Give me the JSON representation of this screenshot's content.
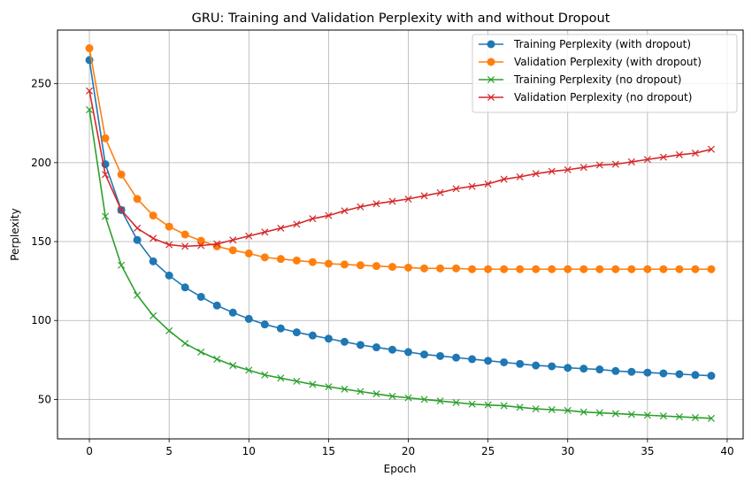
{
  "chart_data": {
    "type": "line",
    "title": "GRU: Training and Validation Perplexity with and without Dropout",
    "xlabel": "Epoch",
    "ylabel": "Perplexity",
    "xlim": [
      -2,
      41
    ],
    "ylim": [
      25,
      284
    ],
    "xticks": [
      0,
      5,
      10,
      15,
      20,
      25,
      30,
      35,
      40
    ],
    "yticks": [
      50,
      100,
      150,
      200,
      250
    ],
    "grid": true,
    "legend_position": "top-right",
    "x": [
      0,
      1,
      2,
      3,
      4,
      5,
      6,
      7,
      8,
      9,
      10,
      11,
      12,
      13,
      14,
      15,
      16,
      17,
      18,
      19,
      20,
      21,
      22,
      23,
      24,
      25,
      26,
      27,
      28,
      29,
      30,
      31,
      32,
      33,
      34,
      35,
      36,
      37,
      38,
      39
    ],
    "series": [
      {
        "name": "Training Perplexity (with dropout)",
        "color": "#1f77b4",
        "marker": "circle",
        "values": [
          265,
          199,
          170,
          151,
          137.5,
          128.5,
          121,
          115,
          109.5,
          105,
          101,
          97.5,
          95,
          92.5,
          90.5,
          88.5,
          86.5,
          84.5,
          83,
          81.5,
          80,
          78.5,
          77.5,
          76.5,
          75.5,
          74.5,
          73.5,
          72.5,
          71.5,
          71,
          70,
          69.5,
          69,
          68,
          67.5,
          67,
          66.5,
          66,
          65.5,
          65
        ]
      },
      {
        "name": "Validation Perplexity (with dropout)",
        "color": "#ff7f0e",
        "marker": "circle",
        "values": [
          272.5,
          215.5,
          192.5,
          177,
          166.5,
          159.5,
          154.5,
          150.5,
          147,
          144.5,
          142.5,
          140,
          139,
          138,
          137,
          136,
          135.5,
          135,
          134.5,
          134,
          133.5,
          133,
          133,
          133,
          132.5,
          132.5,
          132.5,
          132.5,
          132.5,
          132.5,
          132.5,
          132.5,
          132.5,
          132.5,
          132.5,
          132.5,
          132.5,
          132.5,
          132.5,
          132.5
        ]
      },
      {
        "name": "Training Perplexity (no dropout)",
        "color": "#2ca02c",
        "marker": "x",
        "values": [
          233.5,
          166,
          135,
          116,
          103,
          93.5,
          85.5,
          80,
          75.5,
          71.5,
          68.5,
          65.5,
          63.5,
          61.5,
          59.5,
          58,
          56.5,
          55,
          53.5,
          52,
          51,
          50,
          49,
          48,
          47,
          46.5,
          46,
          45,
          44,
          43.5,
          43,
          42,
          41.5,
          41,
          40.5,
          40,
          39.5,
          39,
          38.5,
          38
        ]
      },
      {
        "name": "Validation Perplexity (no dropout)",
        "color": "#d62728",
        "marker": "x",
        "values": [
          245.5,
          192.5,
          170,
          158.5,
          152,
          148,
          147,
          147.5,
          148.5,
          151,
          153.5,
          156,
          158.5,
          161,
          164.5,
          166.5,
          169.5,
          172,
          174,
          175.5,
          177,
          179,
          181,
          183.5,
          185,
          186.5,
          189.5,
          191,
          193,
          194.5,
          195.5,
          197,
          198.5,
          199,
          200.5,
          202,
          203.5,
          205,
          206,
          208.5
        ]
      }
    ]
  }
}
